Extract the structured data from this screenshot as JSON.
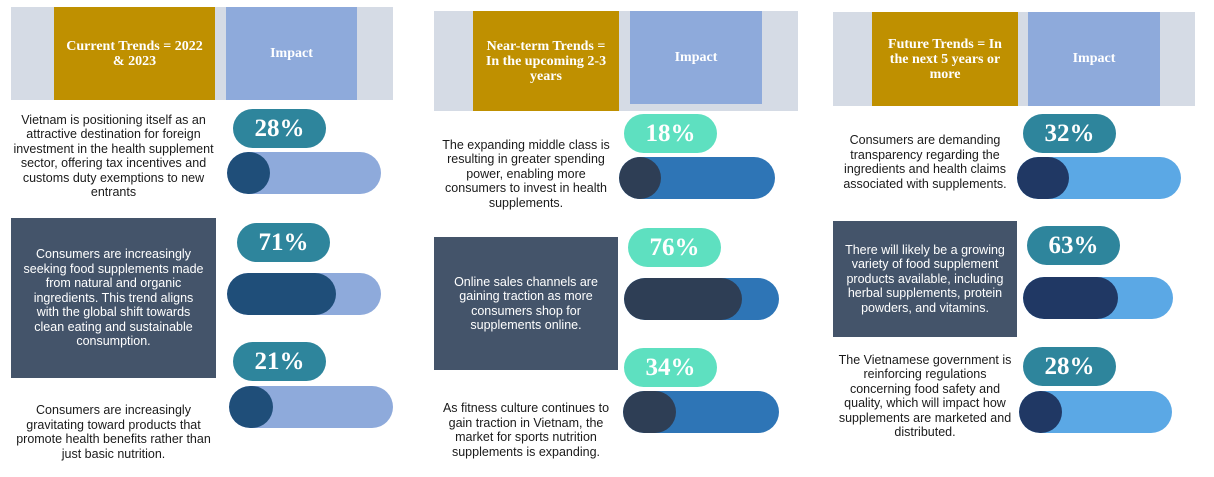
{
  "columns": [
    {
      "header": "Current Trends = 2022 & 2023",
      "impact_label": "Impact",
      "colors": {
        "pill": "#2e859c",
        "fill": "#1f4e79",
        "track": "#8eaadb"
      },
      "items": [
        {
          "text": "Vietnam is positioning itself as an attractive destination for foreign investment in the health supplement sector, offering tax incentives and customs duty exemptions to new entrants",
          "percent_label": "28%",
          "value": 28
        },
        {
          "text": "Consumers are increasingly seeking food supplements made from natural and organic ingredients. This trend aligns with the global shift towards clean eating and sustainable consumption.",
          "percent_label": "71%",
          "value": 71
        },
        {
          "text": "Consumers are increasingly gravitating toward products that promote health benefits rather than just basic nutrition.",
          "percent_label": "21%",
          "value": 21
        }
      ]
    },
    {
      "header": "Near-term Trends = In the upcoming 2-3 years",
      "impact_label": "Impact",
      "colors": {
        "pill": "#5ee0c0",
        "fill": "#2e3e55",
        "track": "#2e75b6"
      },
      "items": [
        {
          "text": "The expanding middle class is resulting in greater spending power, enabling more consumers to invest in health supplements.",
          "percent_label": "18%",
          "value": 18
        },
        {
          "text": "Online sales channels are gaining traction as more consumers shop for supplements online.",
          "percent_label": "76%",
          "value": 76
        },
        {
          "text": "As fitness culture continues to gain traction in Vietnam, the market for sports nutrition supplements is expanding.",
          "percent_label": "34%",
          "value": 34
        }
      ]
    },
    {
      "header": "Future Trends = In the next 5 years or more",
      "impact_label": "Impact",
      "colors": {
        "pill": "#2e859c",
        "fill": "#203864",
        "track": "#5ba8e5"
      },
      "items": [
        {
          "text": "Consumers are demanding transparency regarding the ingredients and health claims associated with supplements.",
          "percent_label": "32%",
          "value": 32
        },
        {
          "text": "There will likely be a growing variety of food supplement products available, including herbal supplements, protein powders, and vitamins.",
          "percent_label": "63%",
          "value": 63
        },
        {
          "text": "The Vietnamese government is reinforcing regulations concerning food safety and quality, which will impact how supplements are marketed and distributed.",
          "percent_label": "28%",
          "value": 28
        }
      ]
    }
  ]
}
